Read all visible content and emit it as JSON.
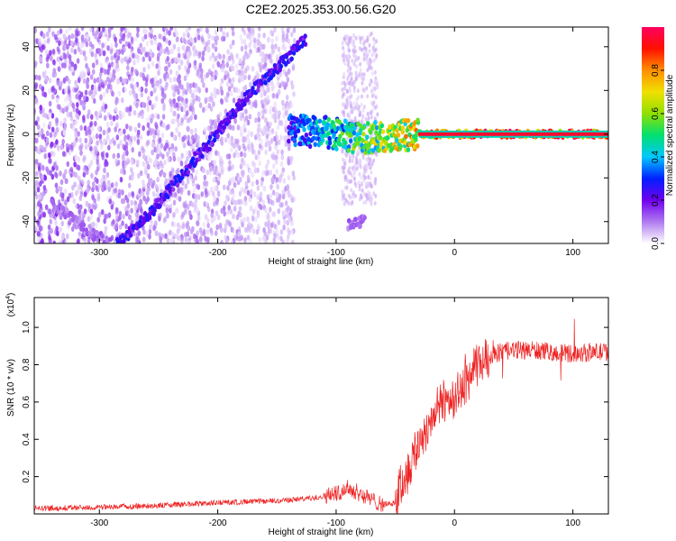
{
  "title": "C2E2.2025.353.00.56.G20",
  "colors": {
    "snr_line": "#ee2222",
    "track_low": "#6a1fe0",
    "track_mid": "#22d8c8",
    "track_high": "#ff2020"
  },
  "chart_data": [
    {
      "type": "heatmap",
      "name": "spectrogram",
      "xlabel": "Height of straight line (km)",
      "ylabel": "Frequency (Hz)",
      "xlim": [
        -355,
        130
      ],
      "ylim": [
        -50,
        49
      ],
      "xticks": [
        -300,
        -200,
        -100,
        0,
        100
      ],
      "yticks": [
        -40,
        -20,
        0,
        20,
        40
      ],
      "colorbar": {
        "label": "Normalized spectral amplitude",
        "range": [
          0,
          1
        ],
        "ticks": [
          0.0,
          0.2,
          0.4,
          0.6,
          0.8
        ],
        "tick_labels": [
          "0.0",
          "0.2",
          "0.4",
          "0.6",
          "0.8"
        ],
        "colormap": [
          "#ffffff",
          "#b07af0",
          "#7000ee",
          "#0020ff",
          "#00c8ff",
          "#00e070",
          "#90e000",
          "#f0e000",
          "#ff9000",
          "#ff1000",
          "#ff0060"
        ]
      },
      "features": [
        {
          "name": "diagonal track",
          "points": [
            [
              -285,
              -50
            ],
            [
              -260,
              -38
            ],
            [
              -240,
              -25
            ],
            [
              -220,
              -12
            ],
            [
              -205,
              -3
            ],
            [
              -190,
              8
            ],
            [
              -170,
              20
            ],
            [
              -145,
              33
            ],
            [
              -125,
              44
            ]
          ],
          "amplitude": 0.25
        },
        {
          "name": "descending hook",
          "points": [
            [
              -340,
              -32
            ],
            [
              -320,
              -40
            ],
            [
              -305,
              -46
            ],
            [
              -290,
              -50
            ]
          ],
          "amplitude": 0.12
        },
        {
          "name": "main signal line",
          "points": [
            [
              -140,
              2
            ],
            [
              -110,
              1
            ],
            [
              -80,
              -2
            ],
            [
              -50,
              -1
            ],
            [
              -30,
              0
            ],
            [
              0,
              0
            ],
            [
              60,
              0
            ],
            [
              130,
              0
            ]
          ],
          "amplitude": [
            0.3,
            1.0
          ]
        },
        {
          "name": "low patch",
          "points": [
            [
              -90,
              -41
            ],
            [
              -75,
              -40
            ]
          ],
          "amplitude": 0.12
        }
      ]
    },
    {
      "type": "line",
      "name": "snr",
      "xlabel": "Height of straight line (km)",
      "ylabel": "SNR (10 * v/v)",
      "scale_label": "(x10",
      "scale_exp": "4",
      "xlim": [
        -355,
        130
      ],
      "ylim": [
        0.0,
        1.16
      ],
      "xticks": [
        -300,
        -200,
        -100,
        0,
        100
      ],
      "yticks": [
        0.2,
        0.4,
        0.6,
        0.8,
        1.0
      ],
      "series": [
        {
          "name": "SNR",
          "x": [
            -355,
            -300,
            -250,
            -200,
            -150,
            -120,
            -100,
            -90,
            -80,
            -70,
            -60,
            -50,
            -45,
            -40,
            -35,
            -30,
            -25,
            -20,
            -15,
            -10,
            -5,
            0,
            5,
            10,
            15,
            20,
            30,
            40,
            60,
            80,
            100,
            130
          ],
          "y": [
            0.03,
            0.035,
            0.045,
            0.06,
            0.07,
            0.085,
            0.11,
            0.14,
            0.11,
            0.075,
            0.05,
            0.06,
            0.16,
            0.22,
            0.3,
            0.38,
            0.44,
            0.5,
            0.56,
            0.6,
            0.62,
            0.63,
            0.66,
            0.7,
            0.76,
            0.8,
            0.85,
            0.87,
            0.88,
            0.87,
            0.86,
            0.87
          ]
        }
      ]
    }
  ]
}
